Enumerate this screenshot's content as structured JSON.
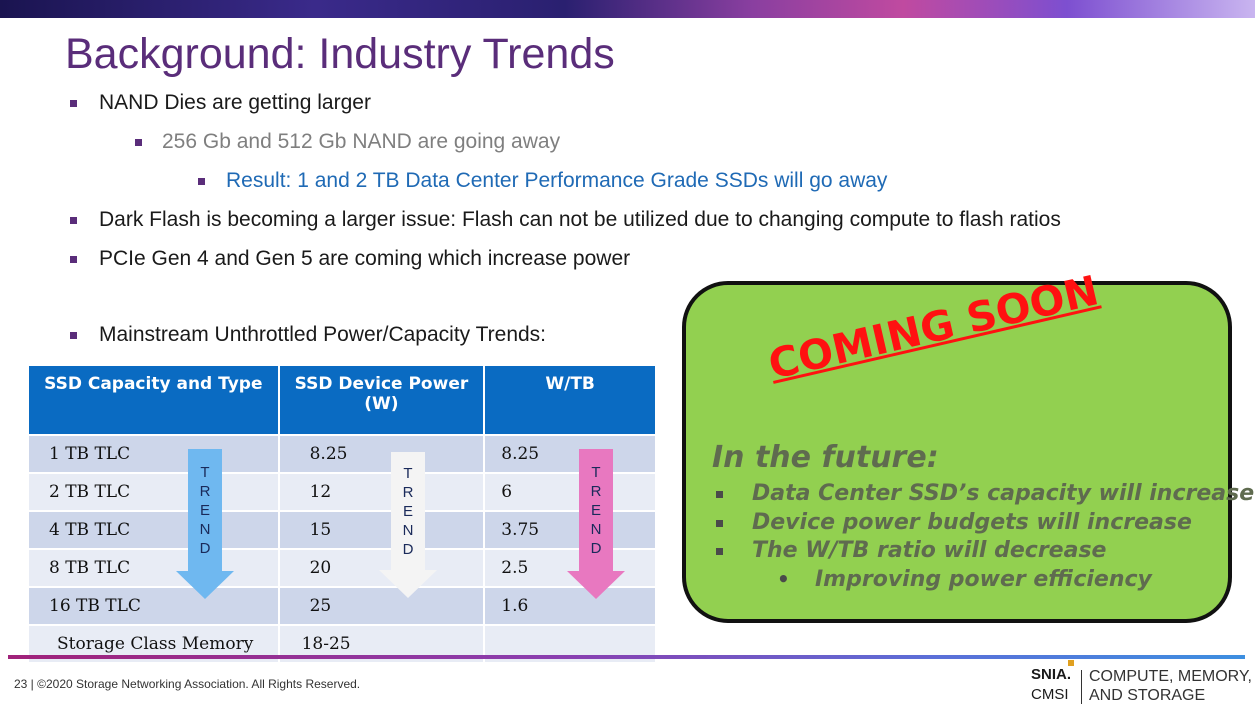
{
  "slide": {
    "title": "Background:  Industry Trends",
    "bullets": [
      {
        "text": "NAND Dies are getting larger",
        "level": 1
      },
      {
        "text": "256 Gb and 512 Gb NAND are going away",
        "level": 2
      },
      {
        "text": "Result:  1 and 2 TB Data Center Performance Grade SSDs will go away",
        "level": 3
      },
      {
        "text": "Dark Flash is becoming a larger issue:  Flash can not be utilized due to changing compute to flash ratios",
        "level": 1
      },
      {
        "text": "PCIe Gen 4 and Gen 5 are coming which increase power",
        "level": 1
      },
      {
        "text": "Mainstream Unthrottled Power/Capacity Trends:",
        "level": 1
      }
    ],
    "table": {
      "headers": [
        "SSD Capacity and Type",
        "SSD Device Power (W)",
        "W/TB"
      ],
      "rows": [
        [
          "1 TB TLC",
          "8.25",
          "8.25"
        ],
        [
          "2 TB TLC",
          "12",
          "6"
        ],
        [
          "4 TB TLC",
          "15",
          "3.75"
        ],
        [
          "8 TB TLC",
          "20",
          "2.5"
        ],
        [
          "16 TB TLC",
          "25",
          "1.6"
        ],
        [
          "Storage Class Memory",
          "18-25",
          ""
        ]
      ],
      "trend_label": "TREND"
    },
    "arrows": {
      "blue": "#6fb8f0",
      "white": "#f4f4f4",
      "pink": "#e878c0"
    },
    "callout": {
      "stamp": "COMING SOON",
      "heading": "In the future:",
      "items": [
        "Data Center SSD’s capacity will increase",
        "Device power budgets will increase",
        "The W/TB ratio will decrease"
      ],
      "subitem": "Improving power efficiency",
      "fill_color": "#92d050",
      "stamp_color": "#ff1111"
    },
    "footer": "23 | ©2020 Storage Networking Association. All Rights Reserved.",
    "logo": {
      "org": "SNIA.",
      "unit": "CMSI",
      "line1": "COMPUTE, MEMORY,",
      "line2": "AND STORAGE"
    }
  }
}
